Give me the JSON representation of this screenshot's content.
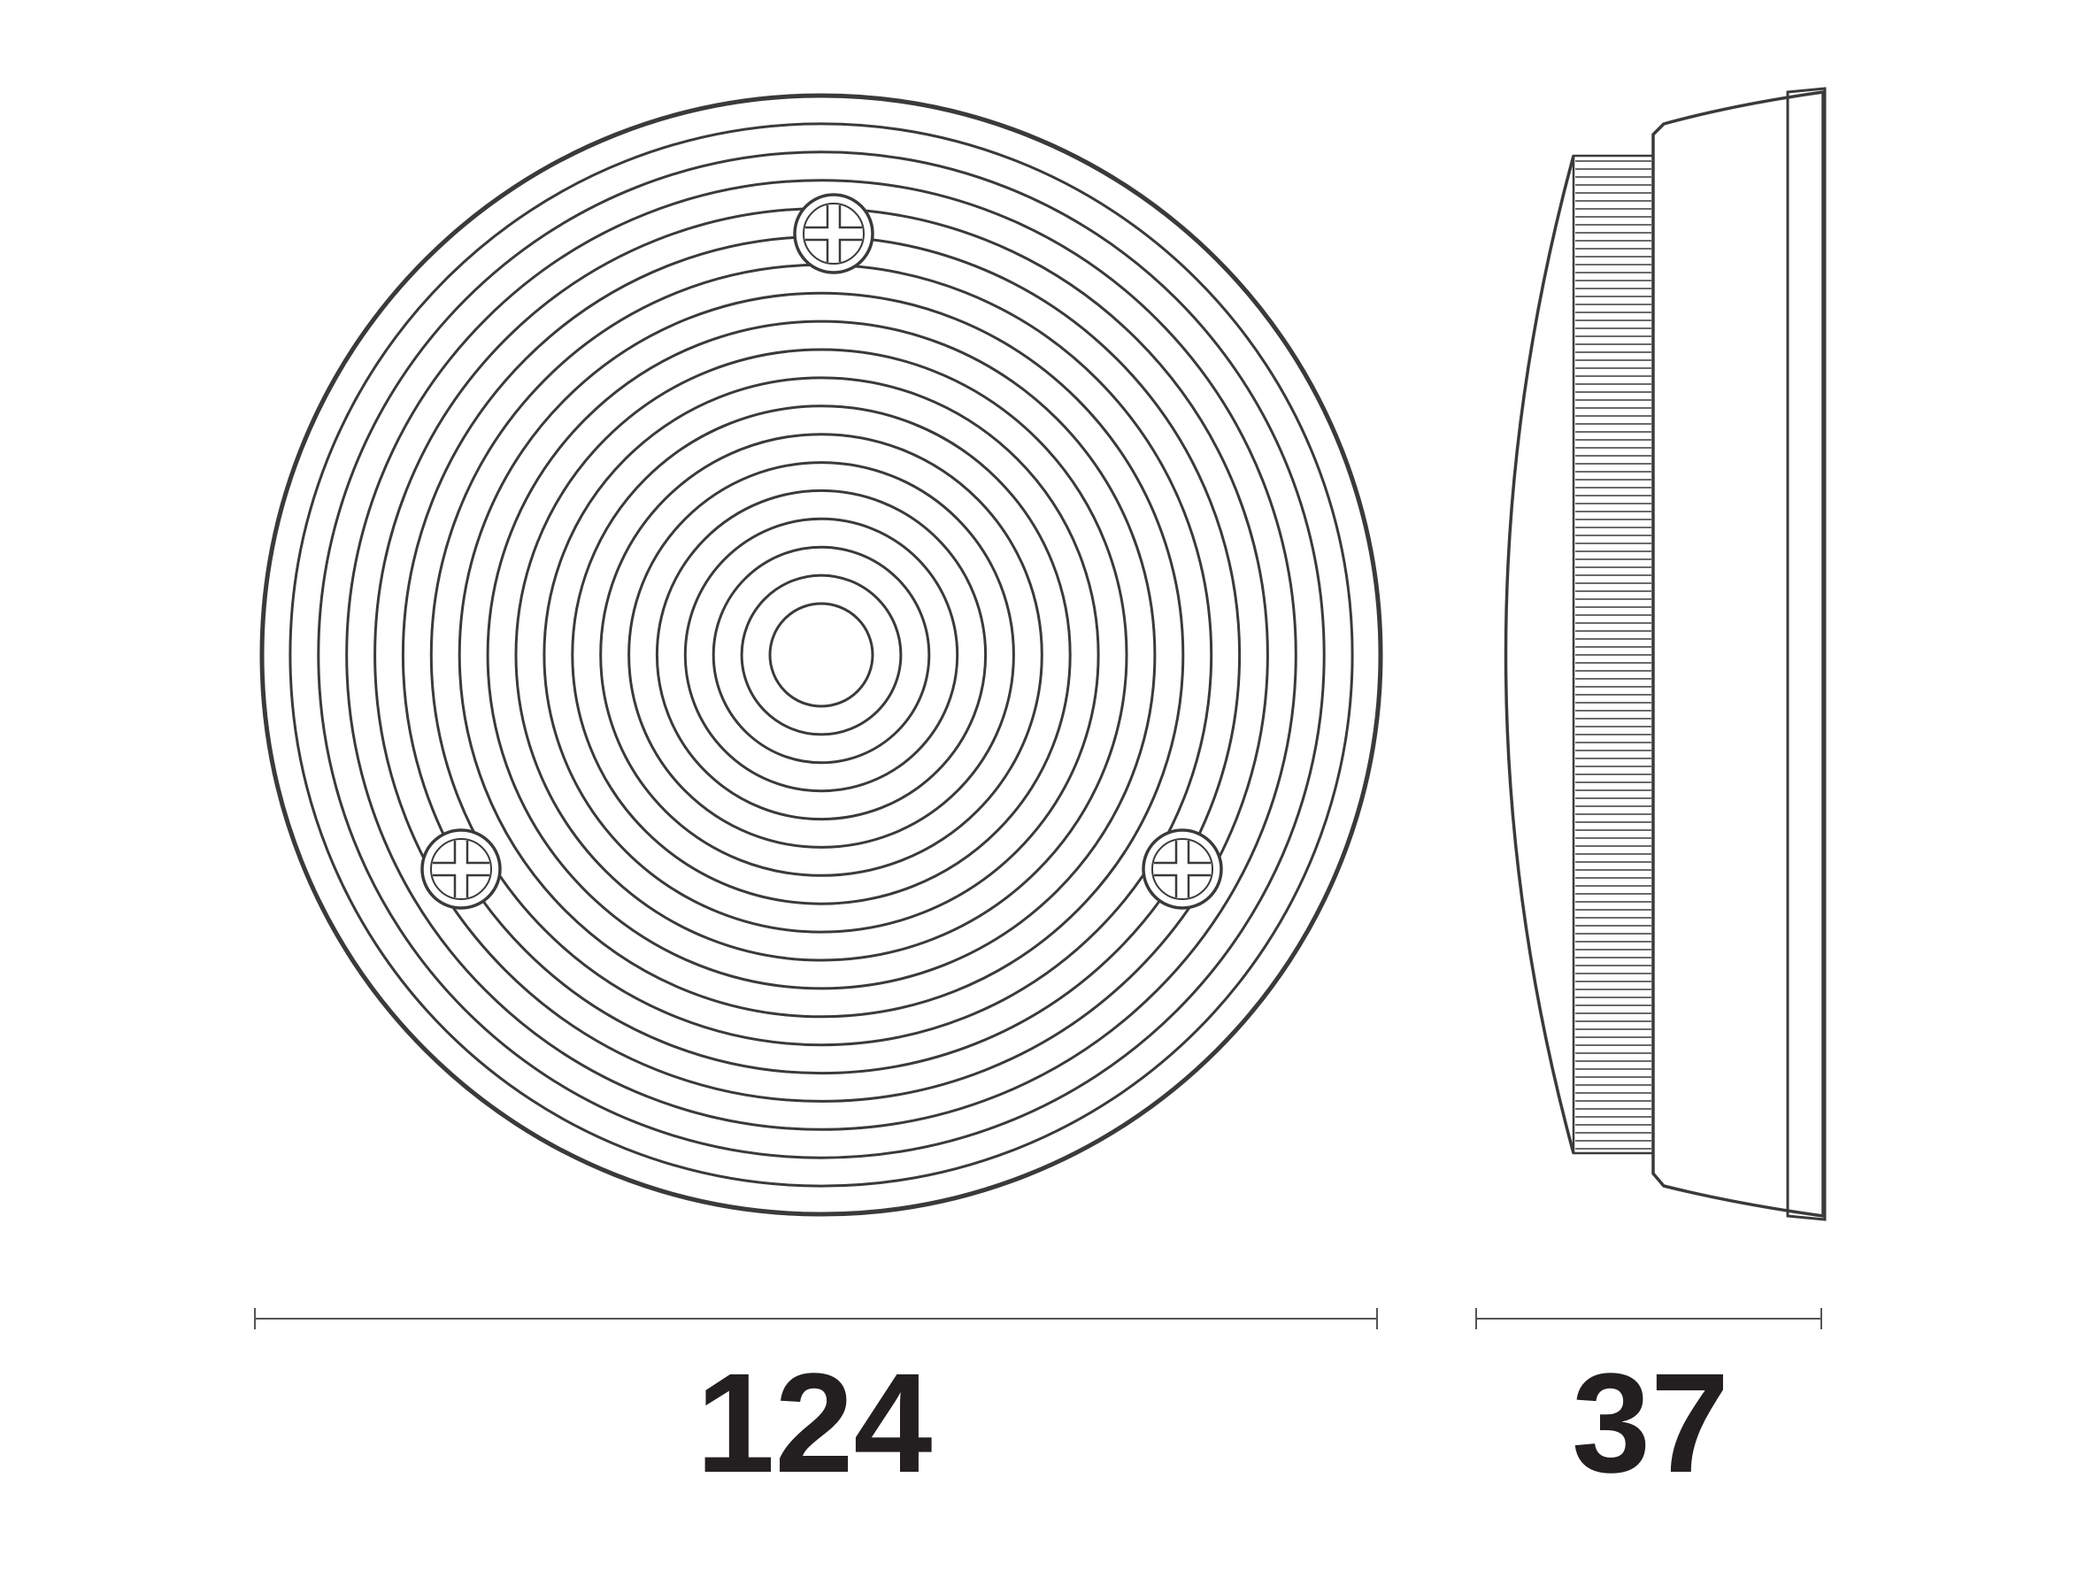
{
  "dimensions": {
    "width_label": "124",
    "depth_label": "37"
  },
  "front_view": {
    "ring_count": 19,
    "screw_count": 3
  },
  "colors": {
    "line": "#3a3a3a",
    "text": "#231f20",
    "background": "#ffffff"
  }
}
